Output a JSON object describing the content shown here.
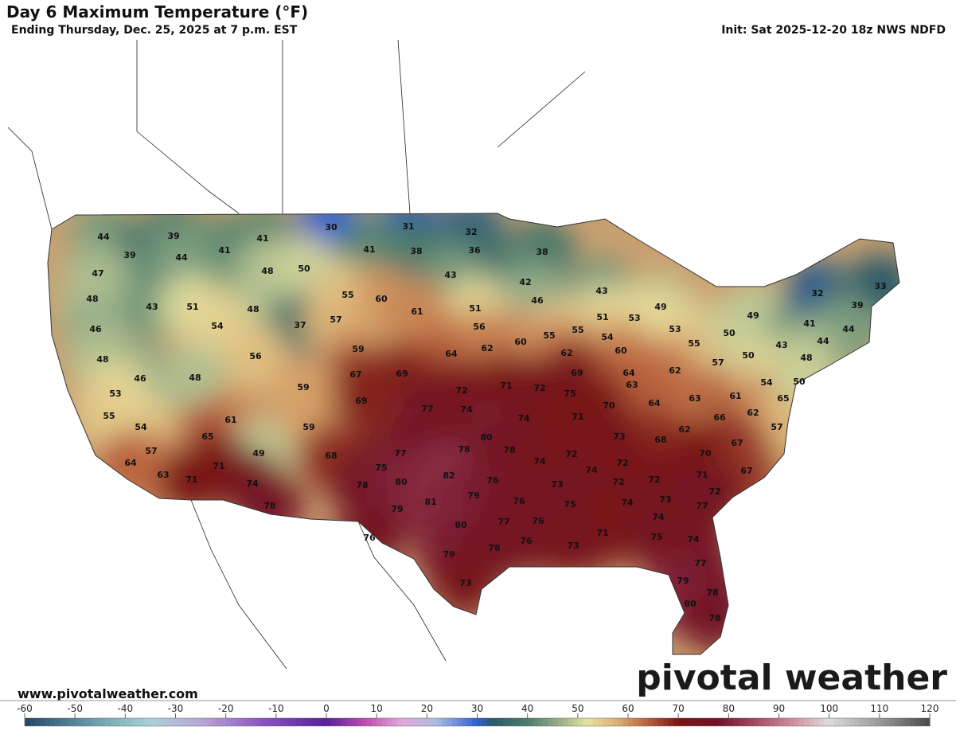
{
  "header": {
    "title": "Day 6 Maximum Temperature (°F)",
    "subtitle": "Ending Thursday, Dec. 25, 2025 at 7 p.m. EST",
    "init": "Init: Sat 2025-12-20 18z NWS NDFD"
  },
  "map": {
    "temperatures": [
      44,
      39,
      41,
      41,
      30,
      31,
      32,
      36,
      38,
      41,
      38,
      39,
      44,
      47,
      48,
      50,
      43,
      42,
      48,
      43,
      51,
      48,
      55,
      60,
      46,
      43,
      49,
      51,
      61,
      46,
      54,
      37,
      57,
      56,
      51,
      53,
      55,
      55,
      60,
      54,
      53,
      55,
      50,
      49,
      41,
      32,
      39,
      33,
      44,
      44,
      43,
      48,
      56,
      59,
      64,
      62,
      62,
      60,
      62,
      57,
      50,
      48,
      46,
      48,
      67,
      69,
      69,
      64,
      63,
      59,
      72,
      71,
      72,
      75,
      53,
      69,
      63,
      61,
      54,
      65,
      50,
      77,
      74,
      70,
      64,
      66,
      62,
      55,
      54,
      61,
      59,
      74,
      71,
      62,
      57,
      65,
      80,
      73,
      68,
      67,
      57,
      49,
      68,
      77,
      78,
      78,
      74,
      72,
      72,
      70,
      64,
      71,
      75,
      74,
      71,
      67,
      63,
      71,
      74,
      78,
      80,
      82,
      76,
      73,
      72,
      72,
      72,
      78,
      79,
      81,
      79,
      76,
      75,
      74,
      73,
      77,
      80,
      77,
      76,
      74,
      76,
      71,
      75,
      74,
      79,
      78,
      76,
      73,
      77,
      73,
      79,
      78,
      80,
      78
    ]
  },
  "colorbar": {
    "lim": [
      -60,
      120
    ],
    "ticks": [
      -60,
      -50,
      -40,
      -30,
      -20,
      -10,
      0,
      10,
      20,
      30,
      40,
      50,
      60,
      70,
      80,
      90,
      100,
      110,
      120
    ],
    "colors": [
      [
        -60,
        "#23476a"
      ],
      [
        -45,
        "#6fa6b0"
      ],
      [
        -35,
        "#a9d3d6"
      ],
      [
        -25,
        "#b9a7d8"
      ],
      [
        -12,
        "#8a4fc0"
      ],
      [
        0,
        "#5a1f9a"
      ],
      [
        8,
        "#c24fb3"
      ],
      [
        15,
        "#e3a9d9"
      ],
      [
        22,
        "#a8bde6"
      ],
      [
        30,
        "#2f5fd0"
      ],
      [
        33,
        "#2a5a6a"
      ],
      [
        40,
        "#4d7d6a"
      ],
      [
        46,
        "#94ad88"
      ],
      [
        52,
        "#e8e2a0"
      ],
      [
        58,
        "#dcae72"
      ],
      [
        64,
        "#b85f3b"
      ],
      [
        70,
        "#7a1616"
      ],
      [
        78,
        "#731228"
      ],
      [
        86,
        "#a8506a"
      ],
      [
        94,
        "#d79aa8"
      ],
      [
        100,
        "#dcdcdc"
      ],
      [
        110,
        "#9a9a9a"
      ],
      [
        120,
        "#4a4a4a"
      ]
    ]
  },
  "footer": {
    "website": "www.pivotalweather.com",
    "logo": "pivotal weather"
  }
}
